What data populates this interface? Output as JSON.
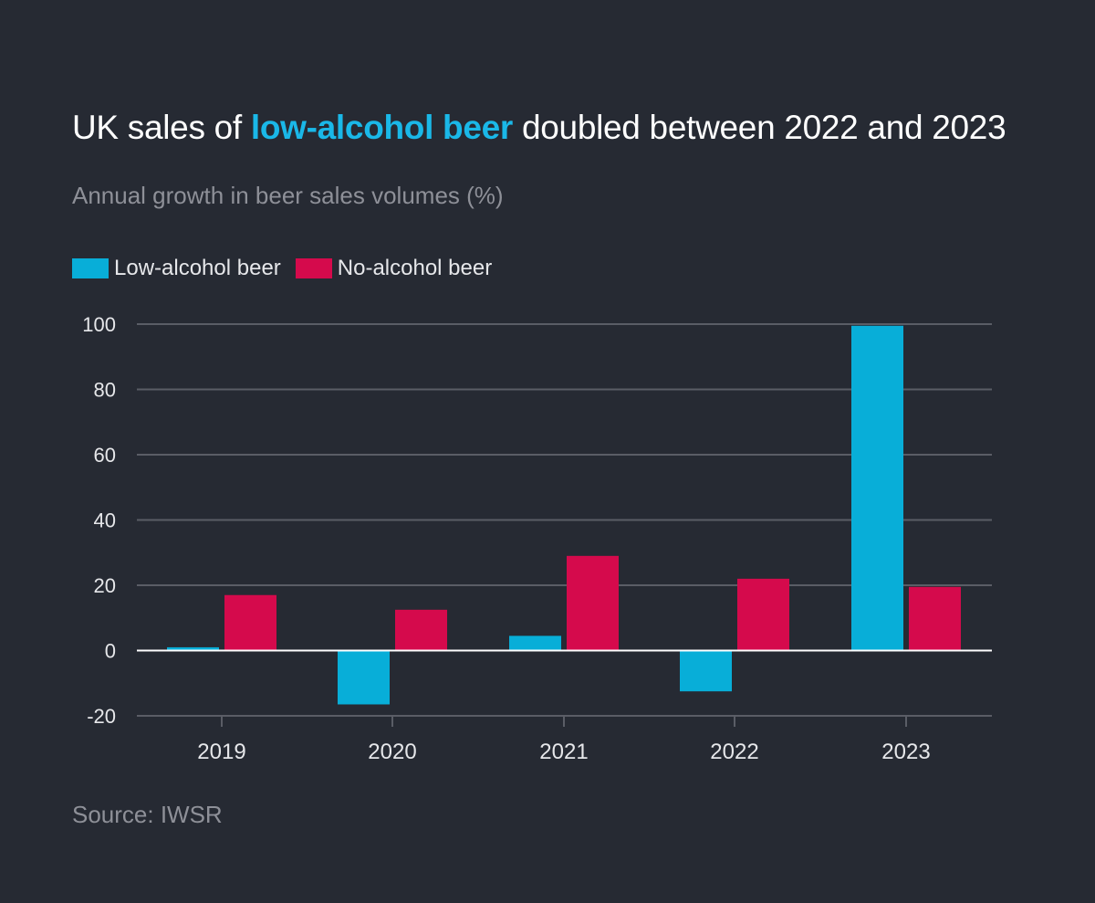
{
  "title": {
    "prefix": "UK sales of ",
    "highlight": "low-alcohol beer",
    "suffix": " doubled between 2022 and 2023"
  },
  "subtitle": "Annual growth in beer sales volumes (%)",
  "source": "Source: IWSR",
  "colors": {
    "background": "#262a33",
    "low_alcohol": "#08aed8",
    "no_alcohol": "#d50a4c",
    "title_highlight": "#1ab8e8",
    "grid": "#5a5d66",
    "zero_line": "#ffffff"
  },
  "chart_data": {
    "type": "bar",
    "title": "UK sales of low-alcohol beer doubled between 2022 and 2023",
    "subtitle": "Annual growth in beer sales volumes (%)",
    "xlabel": "",
    "ylabel": "",
    "categories": [
      "2019",
      "2020",
      "2021",
      "2022",
      "2023"
    ],
    "series": [
      {
        "name": "Low-alcohol beer",
        "values": [
          1,
          -16.5,
          4.5,
          -12.5,
          99.5
        ]
      },
      {
        "name": "No-alcohol beer",
        "values": [
          17,
          12.5,
          29,
          22,
          19.5
        ]
      }
    ],
    "ylim": [
      -20,
      100
    ],
    "yticks": [
      100,
      80,
      60,
      40,
      20,
      0,
      -20
    ],
    "legend_position": "top-left",
    "grid": true
  }
}
